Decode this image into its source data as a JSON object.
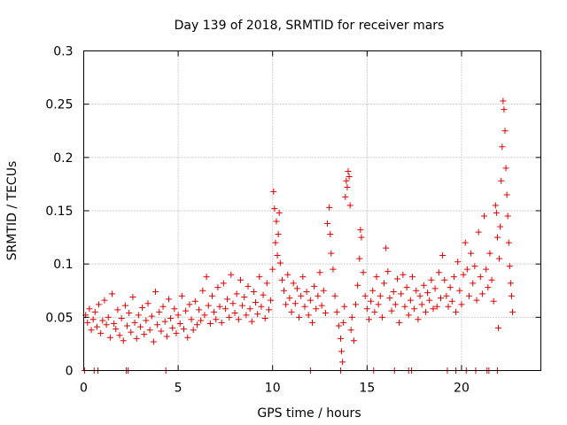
{
  "chart_data": {
    "type": "scatter",
    "title": "Day 139 of 2018, SRMTID for receiver mars",
    "xlabel": "GPS time / hours",
    "ylabel": "SRMTID / TECUs",
    "xlim": [
      0,
      24.2
    ],
    "ylim": [
      0,
      0.3
    ],
    "x_ticks": [
      0,
      5,
      10,
      15,
      20
    ],
    "x_tick_labels": [
      "0",
      "5",
      "10",
      "15",
      "20"
    ],
    "y_ticks": [
      0,
      0.05,
      0.1,
      0.15,
      0.2,
      0.25,
      0.3
    ],
    "y_tick_labels": [
      "0",
      "0.05",
      "0.1",
      "0.15",
      "0.2",
      "0.25",
      "0.3"
    ],
    "grid": true,
    "marker": "plus",
    "color": "#e00000",
    "series": [
      {
        "name": "SRMTID",
        "points": [
          [
            0.1,
            0.052
          ],
          [
            0.2,
            0.045
          ],
          [
            0.3,
            0.058
          ],
          [
            0.4,
            0.038
          ],
          [
            0.5,
            0.048
          ],
          [
            0.6,
            0.055
          ],
          [
            0.7,
            0.041
          ],
          [
            0.8,
            0.062
          ],
          [
            0.9,
            0.035
          ],
          [
            1.0,
            0.047
          ],
          [
            1.1,
            0.066
          ],
          [
            1.2,
            0.043
          ],
          [
            1.3,
            0.05
          ],
          [
            1.4,
            0.031
          ],
          [
            1.5,
            0.072
          ],
          [
            1.6,
            0.044
          ],
          [
            1.7,
            0.039
          ],
          [
            1.8,
            0.057
          ],
          [
            1.9,
            0.033
          ],
          [
            2.0,
            0.049
          ],
          [
            2.1,
            0.028
          ],
          [
            2.2,
            0.061
          ],
          [
            2.3,
            0.042
          ],
          [
            2.4,
            0.054
          ],
          [
            2.5,
            0.036
          ],
          [
            2.6,
            0.069
          ],
          [
            2.7,
            0.045
          ],
          [
            2.8,
            0.03
          ],
          [
            2.9,
            0.052
          ],
          [
            3.0,
            0.041
          ],
          [
            3.1,
            0.059
          ],
          [
            3.2,
            0.034
          ],
          [
            3.3,
            0.047
          ],
          [
            3.4,
            0.063
          ],
          [
            3.5,
            0.038
          ],
          [
            3.6,
            0.051
          ],
          [
            3.7,
            0.027
          ],
          [
            3.8,
            0.074
          ],
          [
            3.9,
            0.043
          ],
          [
            4.0,
            0.055
          ],
          [
            4.1,
            0.037
          ],
          [
            4.2,
            0.06
          ],
          [
            4.3,
            0.046
          ],
          [
            4.4,
            0.032
          ],
          [
            4.5,
            0.067
          ],
          [
            4.6,
            0.049
          ],
          [
            4.7,
            0.04
          ],
          [
            4.8,
            0.058
          ],
          [
            4.9,
            0.035
          ],
          [
            5.0,
            0.052
          ],
          [
            5.1,
            0.044
          ],
          [
            5.2,
            0.07
          ],
          [
            5.3,
            0.039
          ],
          [
            5.4,
            0.056
          ],
          [
            5.5,
            0.031
          ],
          [
            5.6,
            0.062
          ],
          [
            5.7,
            0.048
          ],
          [
            5.8,
            0.038
          ],
          [
            5.9,
            0.065
          ],
          [
            6.0,
            0.043
          ],
          [
            6.1,
            0.057
          ],
          [
            6.2,
            0.047
          ],
          [
            6.3,
            0.075
          ],
          [
            6.4,
            0.052
          ],
          [
            6.5,
            0.088
          ],
          [
            6.6,
            0.061
          ],
          [
            6.7,
            0.044
          ],
          [
            6.8,
            0.07
          ],
          [
            6.9,
            0.055
          ],
          [
            7.0,
            0.048
          ],
          [
            7.1,
            0.078
          ],
          [
            7.2,
            0.06
          ],
          [
            7.3,
            0.045
          ],
          [
            7.4,
            0.082
          ],
          [
            7.5,
            0.058
          ],
          [
            7.6,
            0.067
          ],
          [
            7.7,
            0.05
          ],
          [
            7.8,
            0.09
          ],
          [
            7.9,
            0.063
          ],
          [
            8.0,
            0.054
          ],
          [
            8.1,
            0.072
          ],
          [
            8.2,
            0.048
          ],
          [
            8.3,
            0.085
          ],
          [
            8.4,
            0.061
          ],
          [
            8.5,
            0.069
          ],
          [
            8.6,
            0.052
          ],
          [
            8.7,
            0.079
          ],
          [
            8.8,
            0.058
          ],
          [
            8.9,
            0.046
          ],
          [
            9.0,
            0.074
          ],
          [
            9.1,
            0.064
          ],
          [
            9.2,
            0.053
          ],
          [
            9.3,
            0.088
          ],
          [
            9.4,
            0.06
          ],
          [
            9.5,
            0.071
          ],
          [
            9.6,
            0.049
          ],
          [
            9.7,
            0.082
          ],
          [
            9.8,
            0.057
          ],
          [
            9.9,
            0.066
          ],
          [
            10.0,
            0.095
          ],
          [
            10.05,
            0.168
          ],
          [
            10.1,
            0.152
          ],
          [
            10.15,
            0.12
          ],
          [
            10.2,
            0.14
          ],
          [
            10.25,
            0.108
          ],
          [
            10.3,
            0.128
          ],
          [
            10.35,
            0.148
          ],
          [
            10.4,
            0.101
          ],
          [
            10.5,
            0.085
          ],
          [
            10.6,
            0.075
          ],
          [
            10.7,
            0.062
          ],
          [
            10.8,
            0.09
          ],
          [
            10.9,
            0.068
          ],
          [
            11.0,
            0.055
          ],
          [
            11.1,
            0.082
          ],
          [
            11.2,
            0.063
          ],
          [
            11.3,
            0.077
          ],
          [
            11.4,
            0.05
          ],
          [
            11.5,
            0.07
          ],
          [
            11.6,
            0.088
          ],
          [
            11.7,
            0.06
          ],
          [
            11.8,
            0.074
          ],
          [
            11.9,
            0.052
          ],
          [
            12.0,
            0.066
          ],
          [
            12.1,
            0.045
          ],
          [
            12.2,
            0.079
          ],
          [
            12.3,
            0.058
          ],
          [
            12.4,
            0.07
          ],
          [
            12.5,
            0.092
          ],
          [
            12.6,
            0.061
          ],
          [
            12.7,
            0.075
          ],
          [
            12.8,
            0.054
          ],
          [
            12.9,
            0.138
          ],
          [
            13.0,
            0.153
          ],
          [
            13.05,
            0.128
          ],
          [
            13.1,
            0.11
          ],
          [
            13.2,
            0.095
          ],
          [
            13.3,
            0.07
          ],
          [
            13.4,
            0.055
          ],
          [
            13.5,
            0.042
          ],
          [
            13.6,
            0.03
          ],
          [
            13.65,
            0.018
          ],
          [
            13.7,
            0.008
          ],
          [
            13.75,
            0.045
          ],
          [
            13.8,
            0.06
          ],
          [
            13.85,
            0.163
          ],
          [
            13.9,
            0.178
          ],
          [
            13.95,
            0.172
          ],
          [
            14.0,
            0.187
          ],
          [
            14.05,
            0.182
          ],
          [
            14.1,
            0.155
          ],
          [
            14.15,
            0.038
          ],
          [
            14.2,
            0.05
          ],
          [
            14.3,
            0.028
          ],
          [
            14.4,
            0.062
          ],
          [
            14.5,
            0.08
          ],
          [
            14.6,
            0.105
          ],
          [
            14.65,
            0.132
          ],
          [
            14.7,
            0.125
          ],
          [
            14.8,
            0.092
          ],
          [
            14.9,
            0.07
          ],
          [
            15.0,
            0.058
          ],
          [
            15.1,
            0.048
          ],
          [
            15.2,
            0.065
          ],
          [
            15.3,
            0.075
          ],
          [
            15.4,
            0.055
          ],
          [
            15.5,
            0.088
          ],
          [
            15.6,
            0.062
          ],
          [
            15.7,
            0.07
          ],
          [
            15.8,
            0.05
          ],
          [
            15.9,
            0.082
          ],
          [
            16.0,
            0.115
          ],
          [
            16.1,
            0.093
          ],
          [
            16.2,
            0.068
          ],
          [
            16.3,
            0.056
          ],
          [
            16.4,
            0.074
          ],
          [
            16.5,
            0.062
          ],
          [
            16.6,
            0.086
          ],
          [
            16.7,
            0.045
          ],
          [
            16.8,
            0.072
          ],
          [
            16.9,
            0.09
          ],
          [
            17.0,
            0.06
          ],
          [
            17.1,
            0.078
          ],
          [
            17.2,
            0.052
          ],
          [
            17.3,
            0.066
          ],
          [
            17.4,
            0.088
          ],
          [
            17.5,
            0.058
          ],
          [
            17.6,
            0.075
          ],
          [
            17.7,
            0.048
          ],
          [
            17.8,
            0.07
          ],
          [
            17.9,
            0.062
          ],
          [
            18.0,
            0.08
          ],
          [
            18.1,
            0.055
          ],
          [
            18.2,
            0.073
          ],
          [
            18.3,
            0.066
          ],
          [
            18.4,
            0.085
          ],
          [
            18.5,
            0.058
          ],
          [
            18.6,
            0.077
          ],
          [
            18.7,
            0.06
          ],
          [
            18.8,
            0.092
          ],
          [
            18.9,
            0.068
          ],
          [
            19.0,
            0.108
          ],
          [
            19.1,
            0.085
          ],
          [
            19.2,
            0.07
          ],
          [
            19.3,
            0.06
          ],
          [
            19.4,
            0.078
          ],
          [
            19.5,
            0.065
          ],
          [
            19.6,
            0.088
          ],
          [
            19.7,
            0.055
          ],
          [
            19.8,
            0.102
          ],
          [
            19.9,
            0.075
          ],
          [
            20.0,
            0.062
          ],
          [
            20.1,
            0.09
          ],
          [
            20.2,
            0.12
          ],
          [
            20.3,
            0.095
          ],
          [
            20.4,
            0.07
          ],
          [
            20.5,
            0.11
          ],
          [
            20.6,
            0.082
          ],
          [
            20.7,
            0.098
          ],
          [
            20.8,
            0.066
          ],
          [
            20.9,
            0.13
          ],
          [
            21.0,
            0.088
          ],
          [
            21.1,
            0.072
          ],
          [
            21.2,
            0.145
          ],
          [
            21.3,
            0.095
          ],
          [
            21.4,
            0.078
          ],
          [
            21.5,
            0.11
          ],
          [
            21.6,
            0.085
          ],
          [
            21.7,
            0.065
          ],
          [
            21.8,
            0.155
          ],
          [
            21.85,
            0.148
          ],
          [
            21.9,
            0.125
          ],
          [
            21.95,
            0.04
          ],
          [
            22.0,
            0.105
          ],
          [
            22.05,
            0.135
          ],
          [
            22.1,
            0.178
          ],
          [
            22.15,
            0.21
          ],
          [
            22.2,
            0.253
          ],
          [
            22.25,
            0.245
          ],
          [
            22.3,
            0.225
          ],
          [
            22.35,
            0.19
          ],
          [
            22.4,
            0.165
          ],
          [
            22.45,
            0.145
          ],
          [
            22.5,
            0.12
          ],
          [
            22.55,
            0.098
          ],
          [
            22.6,
            0.082
          ],
          [
            22.65,
            0.07
          ],
          [
            22.7,
            0.055
          ]
        ],
        "zero_points_x": [
          0.05,
          0.55,
          0.75,
          2.25,
          2.35,
          4.35,
          12.0,
          13.6,
          15.35,
          16.45,
          17.2,
          17.35,
          19.25,
          19.7,
          20.25,
          20.75,
          21.35,
          21.45,
          21.9
        ]
      }
    ]
  }
}
